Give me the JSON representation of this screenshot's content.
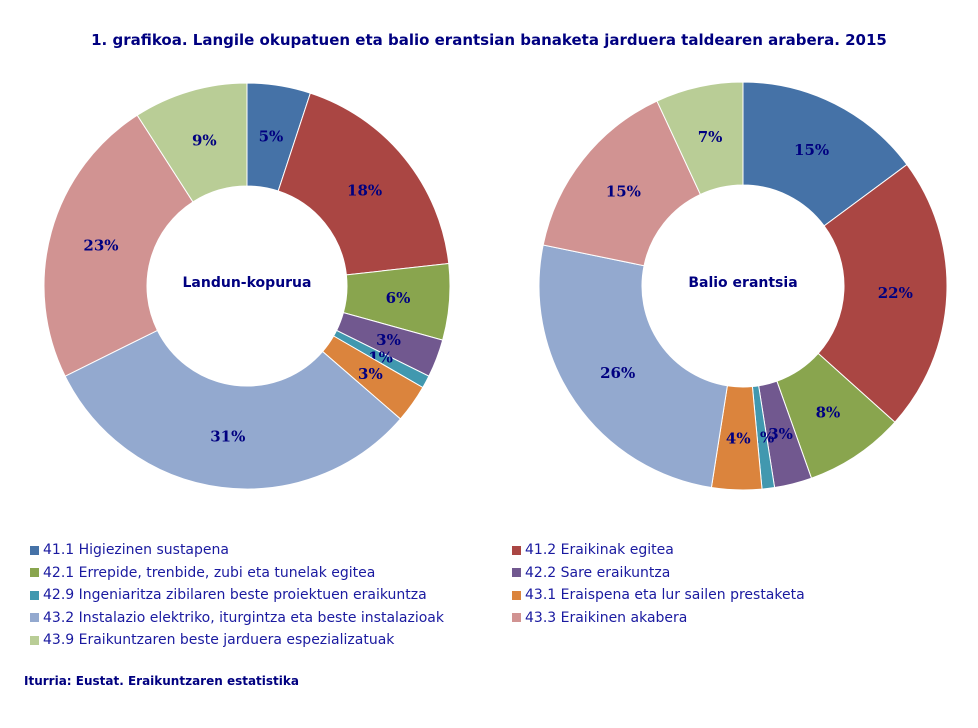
{
  "chart_data": [
    {
      "type": "donut",
      "center_label": "Landun-kopurua",
      "values": [
        5,
        18,
        6,
        3,
        1,
        3,
        31,
        23,
        9
      ]
    },
    {
      "type": "donut",
      "center_label": "Balio erantsia",
      "values": [
        15,
        22,
        8,
        3,
        1,
        4,
        26,
        15,
        7
      ]
    }
  ],
  "title": "1. grafikoa. Langile okupatuen eta balio erantsian banaketa jarduera taldearen arabera. 2015",
  "categories": [
    "41.1 Higiezinen sustapena",
    "41.2 Eraikinak egitea",
    "42.1 Errepide, trenbide, zubi eta tunelak egitea",
    "42.2 Sare eraikuntza",
    "42.9 Ingeniaritza zibilaren beste proiektuen eraikuntza",
    "43.1 Eraispena eta lur sailen prestaketa",
    "43.2 Instalazio elektriko, iturgintza eta beste instalazioak",
    "43.3 Eraikinen akabera",
    "43.9 Eraikuntzaren beste jarduera espezializatuak"
  ],
  "colors": [
    "#4572A7",
    "#AA4643",
    "#89A54E",
    "#71588F",
    "#4198AF",
    "#DB843D",
    "#93A9CF",
    "#D19392",
    "#B9CD96"
  ],
  "source": "Iturria:  Eustat. Eraikuntzaren  estatistika"
}
